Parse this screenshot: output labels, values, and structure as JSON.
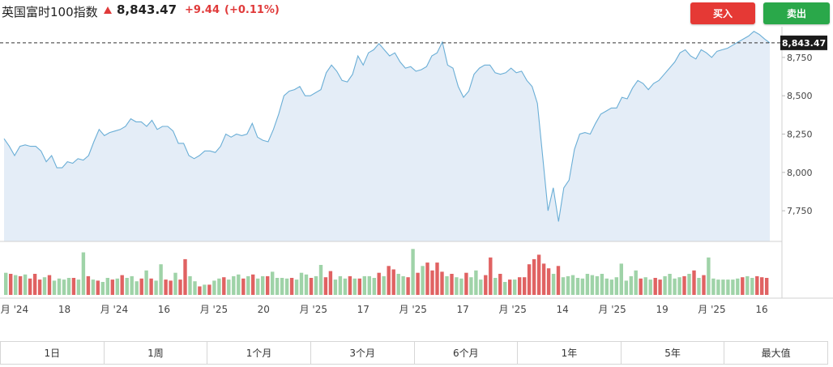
{
  "header": {
    "index_name": "英国富时100指数",
    "last_price": "8,843.47",
    "change": "+9.44",
    "change_pct": "(+0.11%)",
    "up_color": "#e03a3a"
  },
  "actions": {
    "buy_label": "买入",
    "sell_label": "卖出"
  },
  "range_tabs": [
    "1日",
    "1周",
    "1个月",
    "3个月",
    "6个月",
    "1年",
    "5年",
    "最大值"
  ],
  "chart_data": {
    "type": "area",
    "price_label": "8,843.47",
    "ylim": [
      7550,
      8950
    ],
    "y_ticks": [
      7750,
      8000,
      8250,
      8500,
      8750
    ],
    "y_tick_labels": [
      "7,750",
      "8,000",
      "8,250",
      "8,500",
      "8,750"
    ],
    "x_tick_labels": [
      "月 '24",
      "18",
      "月 '24",
      "16",
      "月 '25",
      "20",
      "月 '25",
      "17",
      "月 '25",
      "17",
      "月 '25",
      "14",
      "月 '25",
      "19",
      "月 '25",
      "16"
    ],
    "line_color": "#6aaed6",
    "fill_color": "#e4edf7",
    "volume_up_color": "#9fd3a8",
    "volume_down_color": "#e06262",
    "values": [
      8220,
      8170,
      8110,
      8170,
      8180,
      8170,
      8170,
      8140,
      8070,
      8110,
      8030,
      8030,
      8070,
      8060,
      8090,
      8080,
      8110,
      8200,
      8280,
      8240,
      8260,
      8270,
      8280,
      8300,
      8350,
      8330,
      8330,
      8300,
      8340,
      8280,
      8300,
      8300,
      8270,
      8190,
      8190,
      8110,
      8090,
      8110,
      8140,
      8140,
      8130,
      8170,
      8250,
      8230,
      8250,
      8240,
      8250,
      8320,
      8230,
      8210,
      8200,
      8280,
      8380,
      8500,
      8530,
      8540,
      8560,
      8500,
      8500,
      8520,
      8540,
      8650,
      8700,
      8660,
      8600,
      8590,
      8640,
      8760,
      8700,
      8780,
      8800,
      8840,
      8800,
      8760,
      8780,
      8720,
      8680,
      8690,
      8660,
      8670,
      8690,
      8760,
      8780,
      8850,
      8700,
      8680,
      8560,
      8490,
      8530,
      8640,
      8680,
      8700,
      8700,
      8650,
      8640,
      8650,
      8680,
      8650,
      8660,
      8600,
      8560,
      8450,
      8100,
      7750,
      7900,
      7680,
      7900,
      7950,
      8150,
      8250,
      8260,
      8250,
      8320,
      8380,
      8400,
      8420,
      8420,
      8490,
      8480,
      8550,
      8600,
      8580,
      8540,
      8580,
      8600,
      8640,
      8680,
      8720,
      8780,
      8800,
      8760,
      8740,
      8800,
      8780,
      8750,
      8790,
      8800,
      8810,
      8830,
      8850,
      8870,
      8890,
      8920,
      8900,
      8870,
      8845
    ],
    "volume": [
      {
        "v": 0.65,
        "dir": "up"
      },
      {
        "v": 0.62,
        "dir": "down"
      },
      {
        "v": 0.58,
        "dir": "up"
      },
      {
        "v": 0.55,
        "dir": "down"
      },
      {
        "v": 0.6,
        "dir": "up"
      },
      {
        "v": 0.48,
        "dir": "down"
      },
      {
        "v": 0.62,
        "dir": "down"
      },
      {
        "v": 0.45,
        "dir": "down"
      },
      {
        "v": 0.52,
        "dir": "up"
      },
      {
        "v": 0.58,
        "dir": "down"
      },
      {
        "v": 0.42,
        "dir": "up"
      },
      {
        "v": 0.48,
        "dir": "up"
      },
      {
        "v": 0.45,
        "dir": "up"
      },
      {
        "v": 0.5,
        "dir": "up"
      },
      {
        "v": 0.5,
        "dir": "down"
      },
      {
        "v": 0.45,
        "dir": "up"
      },
      {
        "v": 1.25,
        "dir": "up"
      },
      {
        "v": 0.55,
        "dir": "down"
      },
      {
        "v": 0.45,
        "dir": "up"
      },
      {
        "v": 0.42,
        "dir": "down"
      },
      {
        "v": 0.38,
        "dir": "up"
      },
      {
        "v": 0.5,
        "dir": "up"
      },
      {
        "v": 0.45,
        "dir": "down"
      },
      {
        "v": 0.48,
        "dir": "up"
      },
      {
        "v": 0.58,
        "dir": "down"
      },
      {
        "v": 0.5,
        "dir": "up"
      },
      {
        "v": 0.55,
        "dir": "up"
      },
      {
        "v": 0.4,
        "dir": "up"
      },
      {
        "v": 0.48,
        "dir": "down"
      },
      {
        "v": 0.72,
        "dir": "up"
      },
      {
        "v": 0.48,
        "dir": "down"
      },
      {
        "v": 0.42,
        "dir": "up"
      },
      {
        "v": 0.9,
        "dir": "up"
      },
      {
        "v": 0.45,
        "dir": "down"
      },
      {
        "v": 0.42,
        "dir": "down"
      },
      {
        "v": 0.65,
        "dir": "up"
      },
      {
        "v": 0.45,
        "dir": "down"
      },
      {
        "v": 1.05,
        "dir": "down"
      },
      {
        "v": 0.55,
        "dir": "up"
      },
      {
        "v": 0.4,
        "dir": "up"
      },
      {
        "v": 0.25,
        "dir": "down"
      },
      {
        "v": 0.3,
        "dir": "up"
      },
      {
        "v": 0.3,
        "dir": "down"
      },
      {
        "v": 0.42,
        "dir": "up"
      },
      {
        "v": 0.48,
        "dir": "up"
      },
      {
        "v": 0.52,
        "dir": "down"
      },
      {
        "v": 0.45,
        "dir": "up"
      },
      {
        "v": 0.55,
        "dir": "up"
      },
      {
        "v": 0.6,
        "dir": "up"
      },
      {
        "v": 0.48,
        "dir": "down"
      },
      {
        "v": 0.55,
        "dir": "up"
      },
      {
        "v": 0.6,
        "dir": "down"
      },
      {
        "v": 0.48,
        "dir": "up"
      },
      {
        "v": 0.55,
        "dir": "up"
      },
      {
        "v": 0.55,
        "dir": "down"
      },
      {
        "v": 0.68,
        "dir": "up"
      },
      {
        "v": 0.5,
        "dir": "up"
      },
      {
        "v": 0.5,
        "dir": "up"
      },
      {
        "v": 0.48,
        "dir": "up"
      },
      {
        "v": 0.5,
        "dir": "down"
      },
      {
        "v": 0.45,
        "dir": "up"
      },
      {
        "v": 0.65,
        "dir": "up"
      },
      {
        "v": 0.6,
        "dir": "up"
      },
      {
        "v": 0.5,
        "dir": "down"
      },
      {
        "v": 0.55,
        "dir": "up"
      },
      {
        "v": 0.88,
        "dir": "up"
      },
      {
        "v": 0.52,
        "dir": "down"
      },
      {
        "v": 0.7,
        "dir": "down"
      },
      {
        "v": 0.45,
        "dir": "up"
      },
      {
        "v": 0.55,
        "dir": "up"
      },
      {
        "v": 0.48,
        "dir": "up"
      },
      {
        "v": 0.55,
        "dir": "down"
      },
      {
        "v": 0.48,
        "dir": "up"
      },
      {
        "v": 0.48,
        "dir": "down"
      },
      {
        "v": 0.55,
        "dir": "up"
      },
      {
        "v": 0.55,
        "dir": "up"
      },
      {
        "v": 0.5,
        "dir": "up"
      },
      {
        "v": 0.65,
        "dir": "down"
      },
      {
        "v": 0.55,
        "dir": "up"
      },
      {
        "v": 0.85,
        "dir": "down"
      },
      {
        "v": 0.75,
        "dir": "down"
      },
      {
        "v": 0.62,
        "dir": "up"
      },
      {
        "v": 0.55,
        "dir": "up"
      },
      {
        "v": 0.52,
        "dir": "down"
      },
      {
        "v": 1.35,
        "dir": "up"
      },
      {
        "v": 0.65,
        "dir": "down"
      },
      {
        "v": 0.85,
        "dir": "up"
      },
      {
        "v": 0.95,
        "dir": "down"
      },
      {
        "v": 0.72,
        "dir": "down"
      },
      {
        "v": 0.95,
        "dir": "down"
      },
      {
        "v": 0.68,
        "dir": "down"
      },
      {
        "v": 0.55,
        "dir": "up"
      },
      {
        "v": 0.62,
        "dir": "down"
      },
      {
        "v": 0.52,
        "dir": "up"
      },
      {
        "v": 0.48,
        "dir": "up"
      },
      {
        "v": 0.65,
        "dir": "down"
      },
      {
        "v": 0.52,
        "dir": "up"
      },
      {
        "v": 0.72,
        "dir": "up"
      },
      {
        "v": 0.45,
        "dir": "up"
      },
      {
        "v": 0.58,
        "dir": "down"
      },
      {
        "v": 1.1,
        "dir": "down"
      },
      {
        "v": 0.5,
        "dir": "up"
      },
      {
        "v": 0.62,
        "dir": "down"
      },
      {
        "v": 0.38,
        "dir": "up"
      },
      {
        "v": 0.45,
        "dir": "down"
      },
      {
        "v": 0.45,
        "dir": "up"
      },
      {
        "v": 0.52,
        "dir": "down"
      },
      {
        "v": 0.52,
        "dir": "down"
      },
      {
        "v": 0.9,
        "dir": "down"
      },
      {
        "v": 1.05,
        "dir": "down"
      },
      {
        "v": 1.18,
        "dir": "down"
      },
      {
        "v": 0.92,
        "dir": "down"
      },
      {
        "v": 0.78,
        "dir": "down"
      },
      {
        "v": 0.62,
        "dir": "up"
      },
      {
        "v": 0.85,
        "dir": "down"
      },
      {
        "v": 0.52,
        "dir": "up"
      },
      {
        "v": 0.55,
        "dir": "up"
      },
      {
        "v": 0.58,
        "dir": "up"
      },
      {
        "v": 0.5,
        "dir": "up"
      },
      {
        "v": 0.48,
        "dir": "up"
      },
      {
        "v": 0.62,
        "dir": "up"
      },
      {
        "v": 0.58,
        "dir": "up"
      },
      {
        "v": 0.55,
        "dir": "up"
      },
      {
        "v": 0.62,
        "dir": "up"
      },
      {
        "v": 0.48,
        "dir": "up"
      },
      {
        "v": 0.45,
        "dir": "up"
      },
      {
        "v": 0.52,
        "dir": "up"
      },
      {
        "v": 0.92,
        "dir": "up"
      },
      {
        "v": 0.42,
        "dir": "up"
      },
      {
        "v": 0.55,
        "dir": "up"
      },
      {
        "v": 0.72,
        "dir": "up"
      },
      {
        "v": 0.48,
        "dir": "down"
      },
      {
        "v": 0.52,
        "dir": "up"
      },
      {
        "v": 0.45,
        "dir": "up"
      },
      {
        "v": 0.5,
        "dir": "down"
      },
      {
        "v": 0.45,
        "dir": "down"
      },
      {
        "v": 0.55,
        "dir": "up"
      },
      {
        "v": 0.62,
        "dir": "up"
      },
      {
        "v": 0.48,
        "dir": "up"
      },
      {
        "v": 0.52,
        "dir": "up"
      },
      {
        "v": 0.55,
        "dir": "down"
      },
      {
        "v": 0.62,
        "dir": "up"
      },
      {
        "v": 0.72,
        "dir": "down"
      },
      {
        "v": 0.5,
        "dir": "up"
      },
      {
        "v": 0.58,
        "dir": "down"
      },
      {
        "v": 1.1,
        "dir": "up"
      },
      {
        "v": 0.48,
        "dir": "up"
      },
      {
        "v": 0.45,
        "dir": "up"
      },
      {
        "v": 0.45,
        "dir": "up"
      },
      {
        "v": 0.45,
        "dir": "up"
      },
      {
        "v": 0.45,
        "dir": "up"
      },
      {
        "v": 0.48,
        "dir": "up"
      },
      {
        "v": 0.52,
        "dir": "down"
      },
      {
        "v": 0.55,
        "dir": "up"
      },
      {
        "v": 0.5,
        "dir": "up"
      },
      {
        "v": 0.55,
        "dir": "down"
      },
      {
        "v": 0.52,
        "dir": "down"
      },
      {
        "v": 0.5,
        "dir": "down"
      }
    ]
  }
}
